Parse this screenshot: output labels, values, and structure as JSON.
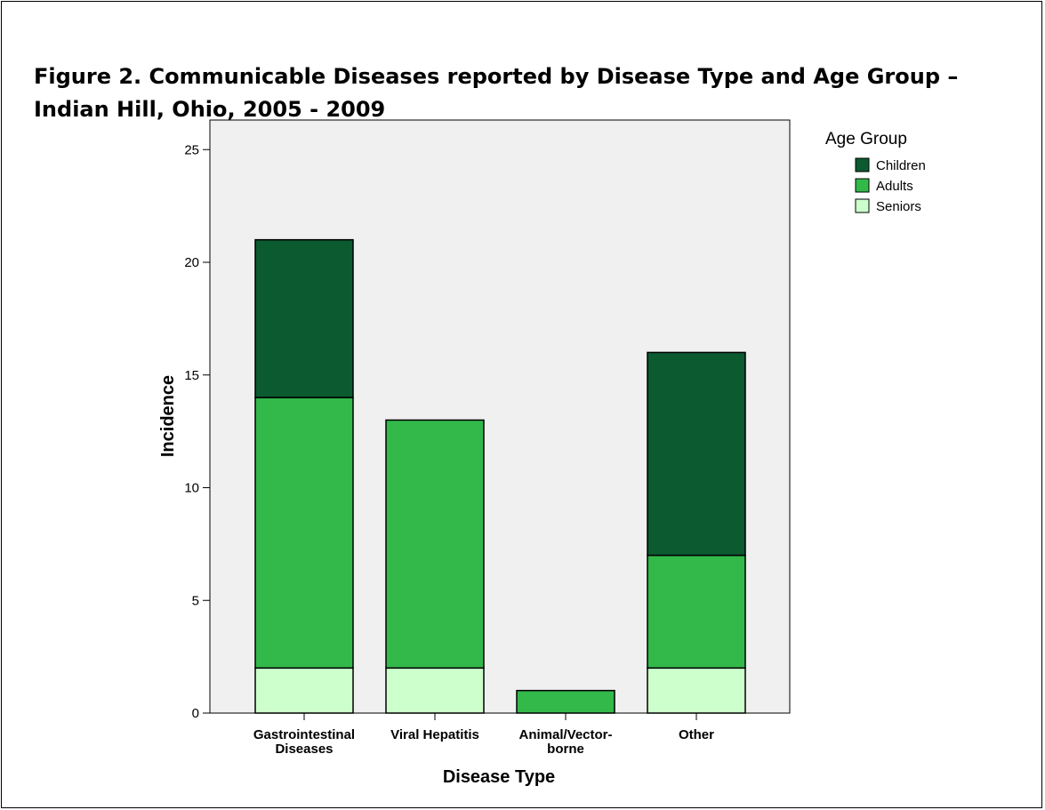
{
  "figure": {
    "title": "Figure 2.  Communicable Diseases reported by Disease Type and Age Group – Indian Hill, Ohio, 2005 - 2009"
  },
  "chart_data": {
    "type": "bar",
    "stacked": true,
    "categories": [
      [
        "Gastrointestinal",
        "Diseases"
      ],
      [
        "Viral Hepatitis"
      ],
      [
        "Animal/Vector-",
        "borne"
      ],
      [
        "Other"
      ]
    ],
    "series": [
      {
        "name": "Seniors",
        "color": "#ccffcc",
        "values": [
          2,
          2,
          0,
          2
        ]
      },
      {
        "name": "Adults",
        "color": "#33b84a",
        "values": [
          12,
          11,
          1,
          5
        ]
      },
      {
        "name": "Children",
        "color": "#0b5a30",
        "values": [
          7,
          0,
          0,
          9
        ]
      }
    ],
    "legend_order": [
      "Children",
      "Adults",
      "Seniors"
    ],
    "legend_title": "Age Group",
    "legend_position": "top-right",
    "xlabel": "Disease Type",
    "ylabel": "Incidence",
    "ylim": [
      0,
      26
    ],
    "yticks": [
      0,
      5,
      10,
      15,
      20,
      25
    ],
    "plot_background": "#f0f0f0",
    "grid": false
  }
}
